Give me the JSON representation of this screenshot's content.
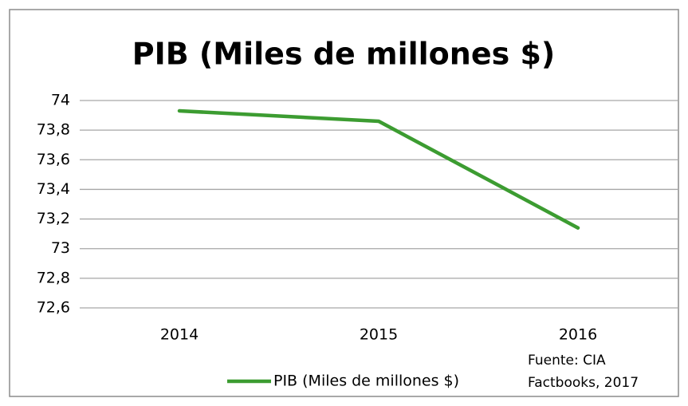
{
  "chart_data": {
    "type": "line",
    "title": "PIB (Miles de millones $)",
    "categories": [
      "2014",
      "2015",
      "2016"
    ],
    "series": [
      {
        "name": "PIB (Miles de millones $)",
        "color": "#3c9c31",
        "values": [
          73.93,
          73.86,
          73.14
        ]
      }
    ],
    "ylim": [
      72.6,
      74
    ],
    "yticks": [
      {
        "value": 72.6,
        "label": "72,6"
      },
      {
        "value": 72.8,
        "label": "72,8"
      },
      73,
      {
        "value": 73.2,
        "label": "73,2"
      },
      {
        "value": 73.4,
        "label": "73,4"
      },
      {
        "value": 73.6,
        "label": "73,6"
      },
      {
        "value": 73.8,
        "label": "73,8"
      },
      74
    ],
    "grid": true,
    "legend": "bottom",
    "annotation": [
      "Fuente: CIA",
      "Factbooks, 2017"
    ]
  }
}
